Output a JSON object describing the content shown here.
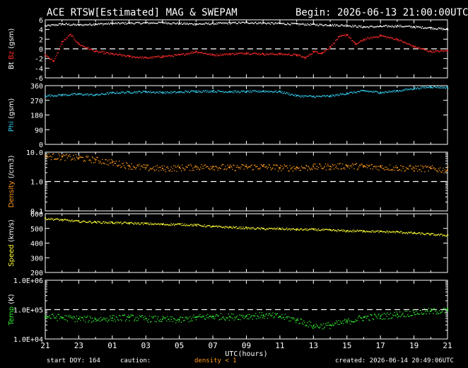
{
  "header": {
    "title": "ACE RTSW[Estimated] MAG & SWEPAM",
    "begin": "Begin: 2026-06-13 21:00:00UTC"
  },
  "footer": {
    "start_doy": "start DOY: 164",
    "caution": "caution:",
    "density_note": "density < 1",
    "created": "created: 2026-06-14 20:49:06UTC"
  },
  "colors": {
    "bt": "#ffffff",
    "bz": "#ff2a2a",
    "phi": "#33ccee",
    "density": "#ff9a1a",
    "speed": "#ffff33",
    "temp": "#33ee33",
    "axes": "#ffffff",
    "background": "#000000"
  },
  "chart_data": [
    {
      "type": "scatter",
      "panel": "mag",
      "ylabel_parts": [
        {
          "text": "Bt",
          "color": "#ffffff"
        },
        {
          "text": "Bz",
          "color": "#ff2a2a"
        },
        {
          "text": "(gsm)",
          "color": "#ffffff"
        }
      ],
      "ylim": [
        -6,
        6
      ],
      "yticks": [
        6,
        4,
        2,
        0,
        -2,
        -4,
        -6
      ],
      "ytick_labels": [
        "6",
        "4",
        "2",
        "0",
        "-2",
        "-4",
        "-6"
      ],
      "ref_lines": [
        0
      ],
      "series": [
        {
          "key": "bt",
          "color": "#ffffff",
          "x": [
            0,
            1,
            2,
            3,
            4,
            5,
            6,
            7,
            8,
            9,
            10,
            11,
            12,
            13,
            14,
            15,
            16,
            17,
            18,
            19,
            20,
            21,
            22,
            23,
            24
          ],
          "values": [
            4.8,
            5.2,
            5.0,
            5.2,
            5.3,
            5.4,
            5.4,
            5.5,
            5.3,
            5.2,
            5.3,
            5.4,
            5.5,
            5.4,
            5.3,
            5.2,
            5.1,
            5.0,
            4.9,
            4.6,
            4.7,
            4.8,
            4.6,
            4.4,
            4.1
          ]
        },
        {
          "key": "bz",
          "color": "#ff2a2a",
          "x": [
            0,
            0.5,
            1,
            1.5,
            2,
            3,
            4,
            5,
            6,
            7,
            8,
            9,
            10,
            11,
            12,
            13,
            14,
            15,
            15.5,
            16,
            16.5,
            17,
            17.5,
            18,
            18.5,
            19,
            20,
            21,
            22,
            23,
            24
          ],
          "values": [
            -1.2,
            -2.5,
            1.5,
            3.0,
            1.0,
            -0.5,
            -1.0,
            -1.5,
            -1.8,
            -1.5,
            -1.2,
            -0.5,
            -1.2,
            -1.0,
            -0.8,
            -1.0,
            -1.0,
            -1.2,
            -1.8,
            -0.5,
            -0.8,
            0.5,
            2.5,
            3.0,
            1.0,
            2.0,
            2.8,
            2.0,
            0.5,
            -0.5,
            -0.3
          ]
        }
      ]
    },
    {
      "type": "scatter",
      "panel": "phi",
      "ylabel_parts": [
        {
          "text": "Phi",
          "color": "#33ccee"
        },
        {
          "text": "(gsm)",
          "color": "#ffffff"
        }
      ],
      "ylim": [
        0,
        360
      ],
      "yticks": [
        360,
        270,
        180,
        90,
        0
      ],
      "ytick_labels": [
        "360",
        "270",
        "180",
        "90",
        "0"
      ],
      "series": [
        {
          "key": "phi",
          "color": "#33ccee",
          "x": [
            0,
            1,
            2,
            3,
            4,
            5,
            6,
            7,
            8,
            9,
            10,
            11,
            12,
            13,
            14,
            15,
            16,
            17,
            18,
            19,
            20,
            21,
            22,
            23,
            24
          ],
          "values": [
            300,
            305,
            310,
            305,
            318,
            322,
            325,
            320,
            322,
            328,
            328,
            325,
            325,
            328,
            325,
            300,
            295,
            298,
            315,
            330,
            320,
            330,
            345,
            355,
            350
          ]
        }
      ]
    },
    {
      "type": "scatter",
      "panel": "density",
      "ylabel_parts": [
        {
          "text": "Density",
          "color": "#ff9a1a"
        },
        {
          "text": "(/cm3)",
          "color": "#ffffff"
        }
      ],
      "yscale": "log",
      "ylim": [
        0.1,
        10
      ],
      "yticks": [
        10,
        1,
        0.1
      ],
      "ytick_labels": [
        "10.0",
        "1.0",
        "0.1"
      ],
      "ref_lines": [
        1
      ],
      "series": [
        {
          "key": "density",
          "color": "#ff9a1a",
          "x": [
            0,
            1,
            2,
            3,
            4,
            5,
            6,
            7,
            8,
            9,
            10,
            11,
            12,
            13,
            14,
            15,
            16,
            17,
            18,
            19,
            20,
            21,
            22,
            23,
            24
          ],
          "values": [
            7.5,
            7.0,
            6.5,
            5.5,
            4.5,
            3.5,
            3.0,
            2.8,
            3.0,
            3.2,
            3.3,
            3.0,
            3.2,
            3.3,
            3.0,
            3.0,
            3.2,
            3.3,
            3.5,
            3.3,
            3.2,
            3.0,
            2.9,
            2.8,
            2.5
          ]
        }
      ]
    },
    {
      "type": "scatter",
      "panel": "speed",
      "ylabel_parts": [
        {
          "text": "Speed",
          "color": "#ffff33"
        },
        {
          "text": "(km/s)",
          "color": "#ffffff"
        }
      ],
      "ylim": [
        200,
        600
      ],
      "yticks": [
        600,
        500,
        400,
        300,
        200
      ],
      "ytick_labels": [
        "600",
        "500",
        "400",
        "300",
        "200"
      ],
      "series": [
        {
          "key": "speed",
          "color": "#ffff33",
          "x": [
            0,
            1,
            2,
            3,
            4,
            5,
            6,
            7,
            8,
            9,
            10,
            11,
            12,
            13,
            14,
            15,
            16,
            17,
            18,
            19,
            20,
            21,
            22,
            23,
            24
          ],
          "values": [
            570,
            560,
            550,
            545,
            542,
            538,
            535,
            530,
            530,
            525,
            515,
            510,
            505,
            500,
            500,
            495,
            495,
            490,
            485,
            485,
            480,
            478,
            470,
            462,
            455
          ]
        }
      ]
    },
    {
      "type": "scatter",
      "panel": "temp",
      "ylabel_parts": [
        {
          "text": "Temp",
          "color": "#33ee33"
        },
        {
          "text": "(K)",
          "color": "#ffffff"
        }
      ],
      "yscale": "log",
      "ylim": [
        10000,
        1000000
      ],
      "yticks": [
        1000000,
        100000,
        10000
      ],
      "ytick_labels": [
        "1.0E+06",
        "1.0E+05",
        "1.0E+04"
      ],
      "ref_lines": [
        100000
      ],
      "xticks": [
        0,
        2,
        4,
        6,
        8,
        10,
        12,
        14,
        16,
        18,
        20,
        22,
        24
      ],
      "xtick_labels": [
        "21",
        "23",
        "01",
        "03",
        "05",
        "07",
        "09",
        "11",
        "13",
        "15",
        "17",
        "19",
        "21"
      ],
      "xlabel": "UTC(hours)",
      "series": [
        {
          "key": "temp",
          "color": "#33ee33",
          "x": [
            0,
            1,
            2,
            3,
            4,
            5,
            6,
            7,
            8,
            9,
            10,
            11,
            12,
            13,
            14,
            15,
            16,
            17,
            18,
            19,
            20,
            21,
            22,
            23,
            24
          ],
          "values": [
            60000,
            55000,
            50000,
            48000,
            52000,
            55000,
            50000,
            48000,
            45000,
            55000,
            60000,
            58000,
            62000,
            65000,
            60000,
            45000,
            28000,
            30000,
            40000,
            55000,
            60000,
            70000,
            80000,
            90000,
            95000
          ]
        }
      ]
    }
  ]
}
